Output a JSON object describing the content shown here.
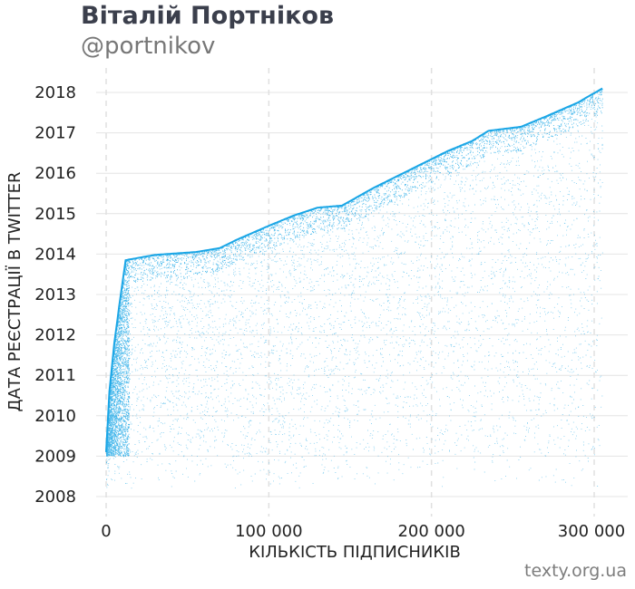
{
  "header": {
    "title": "Віталій Портніков",
    "subtitle": "@portnikov"
  },
  "footer": {
    "credit": "texty.org.ua"
  },
  "colors": {
    "points": "#1aa6e6",
    "grid": "#e4e4e4",
    "vgrid": "#e0e0e0",
    "text": "#222222"
  },
  "chart_data": {
    "type": "scatter",
    "title": "Віталій Портніков",
    "subtitle": "@portnikov",
    "xlabel": "КІЛЬКІСТЬ ПІДПИСНИКІВ",
    "ylabel": "ДАТА РЕЄСТРАЦІЇ В TWITTER",
    "xlim": [
      -6000,
      320000
    ],
    "ylim": [
      2007.55,
      2018.3
    ],
    "x_ticks": [
      {
        "value": 0,
        "label": "0"
      },
      {
        "value": 100000,
        "label": "100 000"
      },
      {
        "value": 200000,
        "label": "200 000"
      },
      {
        "value": 300000,
        "label": "300 000"
      }
    ],
    "y_ticks": [
      {
        "value": 2008,
        "label": "2008"
      },
      {
        "value": 2009,
        "label": "2009"
      },
      {
        "value": 2010,
        "label": "2010"
      },
      {
        "value": 2011,
        "label": "2011"
      },
      {
        "value": 2012,
        "label": "2012"
      },
      {
        "value": 2013,
        "label": "2013"
      },
      {
        "value": 2014,
        "label": "2014"
      },
      {
        "value": 2015,
        "label": "2015"
      },
      {
        "value": 2016,
        "label": "2016"
      },
      {
        "value": 2017,
        "label": "2017"
      },
      {
        "value": 2018,
        "label": "2018"
      }
    ],
    "grid": "horizontal solid, vertical dashed",
    "total_points": 305000,
    "upper_envelope": [
      [
        0,
        2009.1
      ],
      [
        2000,
        2010.6
      ],
      [
        5000,
        2011.8
      ],
      [
        8000,
        2012.7
      ],
      [
        12000,
        2013.85
      ],
      [
        30000,
        2013.98
      ],
      [
        55000,
        2014.05
      ],
      [
        70000,
        2014.15
      ],
      [
        80000,
        2014.35
      ],
      [
        100000,
        2014.7
      ],
      [
        115000,
        2014.95
      ],
      [
        130000,
        2015.15
      ],
      [
        145000,
        2015.2
      ],
      [
        165000,
        2015.65
      ],
      [
        180000,
        2015.95
      ],
      [
        195000,
        2016.25
      ],
      [
        210000,
        2016.55
      ],
      [
        225000,
        2016.8
      ],
      [
        235000,
        2017.05
      ],
      [
        255000,
        2017.15
      ],
      [
        270000,
        2017.4
      ],
      [
        290000,
        2017.75
      ],
      [
        305000,
        2018.1
      ]
    ]
  }
}
